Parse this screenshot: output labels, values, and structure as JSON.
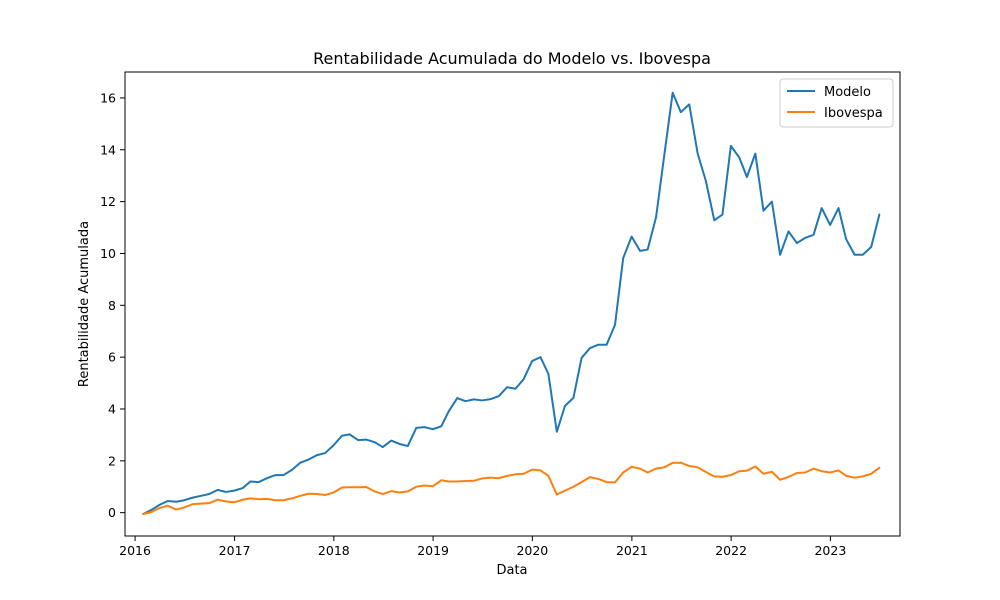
{
  "chart_data": {
    "type": "line",
    "title": "Rentabilidade Acumulada do Modelo vs. Ibovespa",
    "xlabel": "Data",
    "ylabel": "Rentabilidade Acumulada",
    "x_ticks": [
      "2016",
      "2017",
      "2018",
      "2019",
      "2020",
      "2021",
      "2022",
      "2023"
    ],
    "y_ticks": [
      "0",
      "2",
      "4",
      "6",
      "8",
      "10",
      "12",
      "14",
      "16"
    ],
    "xlim": [
      "2015-11-25",
      "2023-09-14"
    ],
    "ylim": [
      -0.9,
      17.0
    ],
    "grid": false,
    "legend": "top-right",
    "colors": {
      "Modelo": "#1f77b4",
      "Ibovespa": "#ff7f0e"
    },
    "x": [
      "2016-01-31",
      "2016-02-29",
      "2016-03-31",
      "2016-04-30",
      "2016-05-31",
      "2016-06-30",
      "2016-07-31",
      "2016-08-31",
      "2016-09-30",
      "2016-10-31",
      "2016-11-30",
      "2016-12-31",
      "2017-01-31",
      "2017-02-28",
      "2017-03-31",
      "2017-04-30",
      "2017-05-31",
      "2017-06-30",
      "2017-07-31",
      "2017-08-31",
      "2017-09-30",
      "2017-10-31",
      "2017-11-30",
      "2017-12-31",
      "2018-01-31",
      "2018-02-28",
      "2018-03-31",
      "2018-04-30",
      "2018-05-31",
      "2018-06-30",
      "2018-07-31",
      "2018-08-31",
      "2018-09-30",
      "2018-10-31",
      "2018-11-30",
      "2018-12-31",
      "2019-01-31",
      "2019-02-28",
      "2019-03-31",
      "2019-04-30",
      "2019-05-31",
      "2019-06-30",
      "2019-07-31",
      "2019-08-31",
      "2019-09-30",
      "2019-10-31",
      "2019-11-30",
      "2019-12-31",
      "2020-01-31",
      "2020-02-29",
      "2020-03-31",
      "2020-04-30",
      "2020-05-31",
      "2020-06-30",
      "2020-07-31",
      "2020-08-31",
      "2020-09-30",
      "2020-10-31",
      "2020-11-30",
      "2020-12-31",
      "2021-01-31",
      "2021-02-28",
      "2021-03-31",
      "2021-04-30",
      "2021-05-31",
      "2021-06-30",
      "2021-07-31",
      "2021-08-31",
      "2021-09-30",
      "2021-10-31",
      "2021-11-30",
      "2021-12-31",
      "2022-01-31",
      "2022-02-28",
      "2022-03-31",
      "2022-04-30",
      "2022-05-31",
      "2022-06-30",
      "2022-07-31",
      "2022-08-31",
      "2022-09-30",
      "2022-10-31",
      "2022-11-30",
      "2022-12-31",
      "2023-01-31",
      "2023-02-28",
      "2023-03-31",
      "2023-04-30",
      "2023-05-31",
      "2023-06-30"
    ],
    "series": [
      {
        "name": "Modelo",
        "values": [
          -0.05,
          0.1,
          0.3,
          0.45,
          0.42,
          0.48,
          0.58,
          0.65,
          0.72,
          0.88,
          0.8,
          0.85,
          0.95,
          1.2,
          1.18,
          1.33,
          1.45,
          1.45,
          1.65,
          1.93,
          2.05,
          2.22,
          2.3,
          2.6,
          2.97,
          3.02,
          2.8,
          2.82,
          2.72,
          2.53,
          2.78,
          2.65,
          2.57,
          3.27,
          3.3,
          3.22,
          3.33,
          3.92,
          4.42,
          4.3,
          4.37,
          4.33,
          4.38,
          4.5,
          4.84,
          4.78,
          5.15,
          5.85,
          6.0,
          5.35,
          3.12,
          4.12,
          4.43,
          5.97,
          6.35,
          6.48,
          6.48,
          7.25,
          9.82,
          10.65,
          10.1,
          10.15,
          11.4,
          13.78,
          16.2,
          15.45,
          15.75,
          13.85,
          12.8,
          11.28,
          11.5,
          14.15,
          13.7,
          12.95,
          13.85,
          11.65,
          12.0,
          9.95,
          10.85,
          10.4,
          10.6,
          10.72,
          11.75,
          11.1,
          11.75,
          10.55,
          9.95,
          9.95,
          10.25,
          11.5
        ]
      },
      {
        "name": "Ibovespa",
        "values": [
          -0.05,
          0.02,
          0.18,
          0.27,
          0.12,
          0.2,
          0.33,
          0.35,
          0.37,
          0.5,
          0.43,
          0.4,
          0.5,
          0.55,
          0.52,
          0.53,
          0.48,
          0.48,
          0.55,
          0.65,
          0.73,
          0.72,
          0.68,
          0.78,
          0.97,
          0.98,
          0.98,
          0.99,
          0.82,
          0.72,
          0.83,
          0.78,
          0.82,
          1.0,
          1.05,
          1.02,
          1.25,
          1.2,
          1.2,
          1.22,
          1.23,
          1.32,
          1.35,
          1.33,
          1.42,
          1.48,
          1.5,
          1.66,
          1.63,
          1.42,
          0.7,
          0.85,
          1.0,
          1.18,
          1.37,
          1.3,
          1.18,
          1.17,
          1.55,
          1.77,
          1.7,
          1.55,
          1.7,
          1.75,
          1.92,
          1.93,
          1.8,
          1.75,
          1.57,
          1.4,
          1.38,
          1.45,
          1.6,
          1.62,
          1.78,
          1.5,
          1.58,
          1.27,
          1.38,
          1.53,
          1.55,
          1.7,
          1.6,
          1.55,
          1.63,
          1.42,
          1.35,
          1.4,
          1.5,
          1.73
        ]
      }
    ]
  }
}
